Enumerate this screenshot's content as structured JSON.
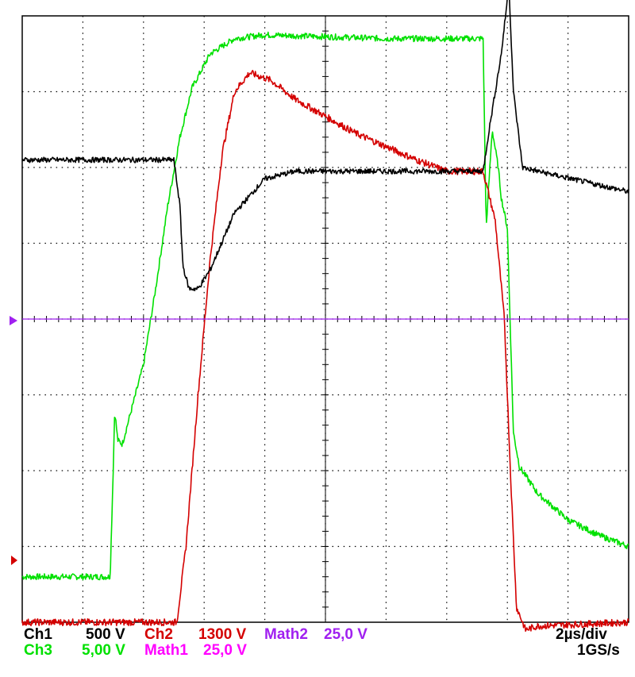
{
  "chart_data": {
    "type": "line",
    "grid": true,
    "xlim": [
      0,
      20
    ],
    "ylim": [
      -4,
      4
    ],
    "x_unit": "µs",
    "y_unit": "div",
    "series": [
      {
        "name": "Ch1",
        "color": "#000000",
        "scale": "500 V",
        "points": [
          [
            0,
            2.1
          ],
          [
            5,
            2.1
          ],
          [
            5.2,
            1.5
          ],
          [
            5.3,
            0.7
          ],
          [
            5.5,
            0.4
          ],
          [
            5.8,
            0.4
          ],
          [
            6.2,
            0.65
          ],
          [
            7,
            1.4
          ],
          [
            8,
            1.85
          ],
          [
            9,
            1.95
          ],
          [
            13,
            1.95
          ],
          [
            15.2,
            1.95
          ],
          [
            15.4,
            2.5
          ],
          [
            15.8,
            3.5
          ],
          [
            16.05,
            4.4
          ],
          [
            16.2,
            3.0
          ],
          [
            16.5,
            2.0
          ],
          [
            17,
            1.95
          ],
          [
            20,
            1.68
          ]
        ]
      },
      {
        "name": "Ch2",
        "color": "#ff0000",
        "scale": "1300 V",
        "points": [
          [
            0,
            -4.0
          ],
          [
            5.1,
            -4.0
          ],
          [
            5.4,
            -3.0
          ],
          [
            5.8,
            -1.0
          ],
          [
            6.2,
            0.8
          ],
          [
            6.6,
            2.2
          ],
          [
            7.0,
            3.0
          ],
          [
            7.5,
            3.25
          ],
          [
            8.2,
            3.15
          ],
          [
            9,
            2.9
          ],
          [
            11,
            2.45
          ],
          [
            13,
            2.1
          ],
          [
            14,
            1.95
          ],
          [
            15.2,
            1.95
          ],
          [
            15.6,
            1.3
          ],
          [
            15.9,
            0
          ],
          [
            16.1,
            -2.0
          ],
          [
            16.3,
            -3.8
          ],
          [
            16.6,
            -4.1
          ],
          [
            17,
            -4.05
          ],
          [
            20,
            -4.0
          ]
        ]
      },
      {
        "name": "Ch3",
        "color": "#00ee00",
        "scale": "5,00 V",
        "points": [
          [
            0,
            -3.4
          ],
          [
            2.9,
            -3.4
          ],
          [
            3.0,
            -2.0
          ],
          [
            3.05,
            -1.2
          ],
          [
            3.15,
            -1.6
          ],
          [
            3.3,
            -1.65
          ],
          [
            3.6,
            -1.2
          ],
          [
            4.0,
            -0.6
          ],
          [
            4.4,
            0.4
          ],
          [
            4.8,
            1.5
          ],
          [
            5.2,
            2.4
          ],
          [
            5.6,
            3.05
          ],
          [
            6.2,
            3.5
          ],
          [
            7.0,
            3.7
          ],
          [
            8.0,
            3.75
          ],
          [
            12,
            3.7
          ],
          [
            15.2,
            3.7
          ],
          [
            15.3,
            1.2
          ],
          [
            15.5,
            2.5
          ],
          [
            15.7,
            2.0
          ],
          [
            15.8,
            1.6
          ],
          [
            16.0,
            1.2
          ],
          [
            16.2,
            -1.5
          ],
          [
            16.4,
            -1.95
          ],
          [
            17,
            -2.3
          ],
          [
            18,
            -2.65
          ],
          [
            19,
            -2.85
          ],
          [
            20,
            -3.0
          ]
        ]
      },
      {
        "name": "Math1",
        "color": "#ff00ff",
        "scale": "25,0 V",
        "points": []
      },
      {
        "name": "Math2",
        "color": "#a020f0",
        "scale": "25,0 V",
        "points": [
          [
            0,
            0
          ],
          [
            20,
            0
          ]
        ]
      }
    ],
    "timebase": "2µs/div",
    "sample_rate": "1GS/s"
  },
  "status_bar": {
    "ch1_label": "Ch1",
    "ch1_value": "500 V",
    "ch2_label": "Ch2",
    "ch2_value": "1300 V",
    "math2_label": "Math2",
    "math2_value": "25,0 V",
    "timebase": "2µs/div",
    "ch3_label": "Ch3",
    "ch3_value": "5,00 V",
    "math1_label": "Math1",
    "math1_value": "25,0 V",
    "sample_rate": "1GS/s"
  },
  "colors": {
    "ch1": "#000000",
    "ch2": "#d40000",
    "ch3": "#00e000",
    "math1": "#ff00ff",
    "math2": "#a020f0",
    "grid": "#000000"
  }
}
